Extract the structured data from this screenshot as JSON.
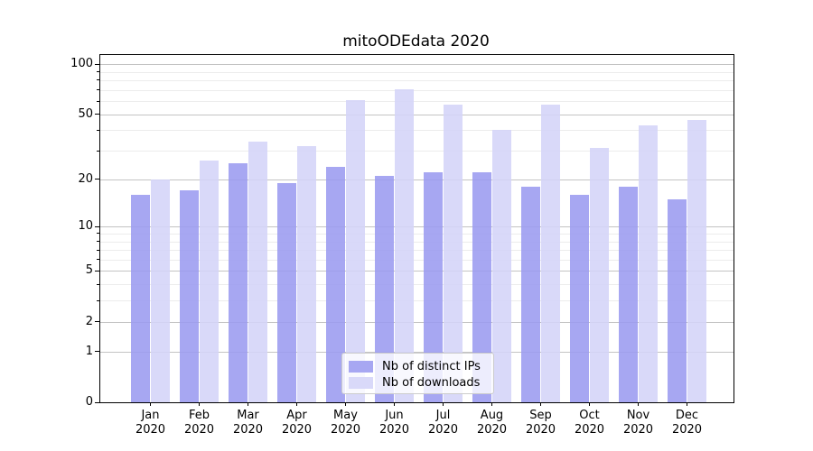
{
  "chart_data": {
    "type": "bar",
    "title": "mitoODEdata 2020",
    "categories": [
      "Jan",
      "Feb",
      "Mar",
      "Apr",
      "May",
      "Jun",
      "Jul",
      "Aug",
      "Sep",
      "Oct",
      "Nov",
      "Dec"
    ],
    "category_sublabel": "2020",
    "series": [
      {
        "name": "Nb of distinct IPs",
        "color": "#9b9bf0",
        "values": [
          16,
          17,
          25,
          19,
          24,
          21,
          22,
          22,
          18,
          16,
          18,
          15
        ]
      },
      {
        "name": "Nb of downloads",
        "color": "#d4d4f8",
        "values": [
          20,
          26,
          34,
          32,
          61,
          71,
          57,
          40,
          57,
          31,
          43,
          46
        ]
      }
    ],
    "xlabel": "",
    "ylabel": "",
    "yscale": "log1p",
    "ylim": [
      0,
      113
    ],
    "yticks_major": [
      0,
      1,
      2,
      5,
      10,
      20,
      50,
      100
    ],
    "yticks_minor": [
      3,
      4,
      6,
      7,
      8,
      9,
      30,
      40,
      60,
      70,
      80,
      90
    ],
    "grid": true,
    "legend_position": "lower center"
  },
  "colors": {
    "grid_major": "#c3c3c3",
    "grid_minor": "#ececec",
    "spine": "#000000",
    "background": "#ffffff"
  }
}
